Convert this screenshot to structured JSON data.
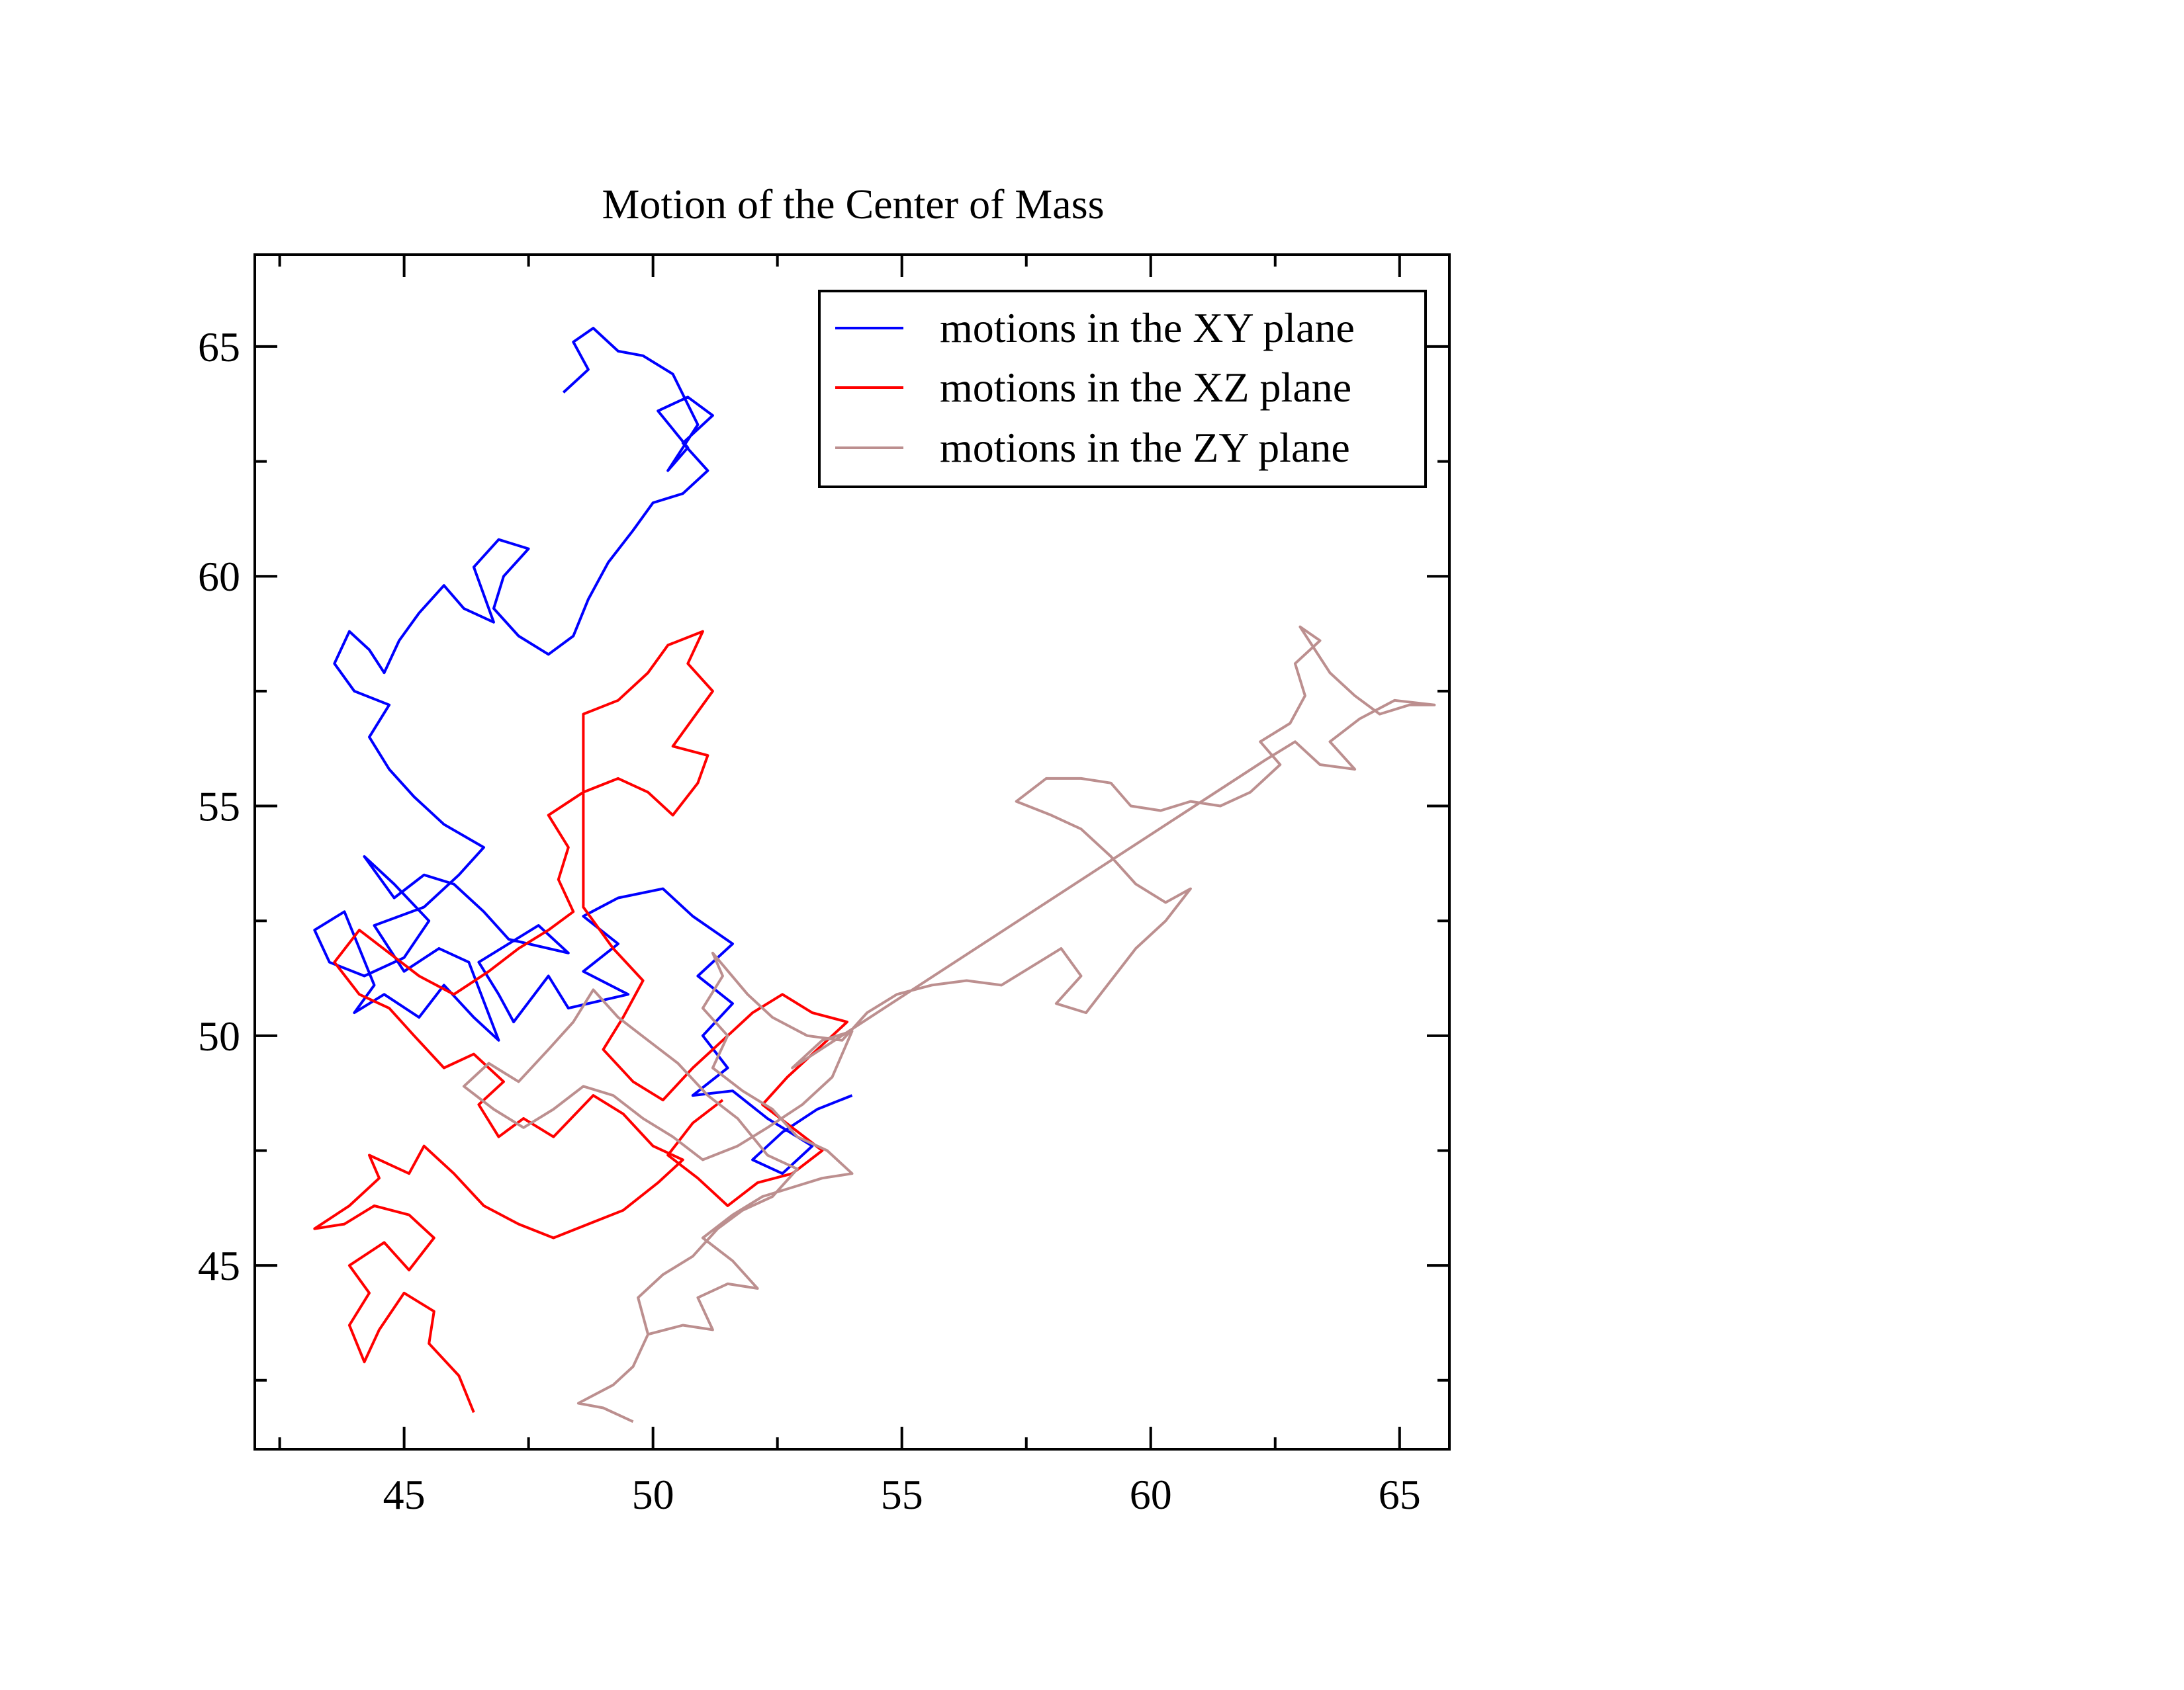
{
  "chart_data": {
    "type": "line",
    "title": "Motion of the Center of Mass",
    "xlabel": "",
    "ylabel": "",
    "xlim": [
      42,
      66
    ],
    "ylim": [
      41,
      67
    ],
    "x_ticks": [
      45,
      50,
      55,
      60,
      65
    ],
    "y_ticks": [
      45,
      50,
      55,
      60,
      65
    ],
    "x_minor_ticks": [
      42.5,
      47.5,
      52.5,
      57.5,
      62.5
    ],
    "y_minor_ticks": [
      42.5,
      47.5,
      52.5,
      57.5,
      62.5
    ],
    "grid": false,
    "legend_position": "top-right",
    "series": [
      {
        "name": "motions in the XY plane",
        "color": "#0000ff",
        "points": [
          [
            54.0,
            48.7
          ],
          [
            53.3,
            48.4
          ],
          [
            52.6,
            47.9
          ],
          [
            52.0,
            47.3
          ],
          [
            52.6,
            47.0
          ],
          [
            53.2,
            47.6
          ],
          [
            52.3,
            48.2
          ],
          [
            51.6,
            48.8
          ],
          [
            50.8,
            48.7
          ],
          [
            51.5,
            49.3
          ],
          [
            51.0,
            50.0
          ],
          [
            51.6,
            50.7
          ],
          [
            50.9,
            51.3
          ],
          [
            51.6,
            52.0
          ],
          [
            50.8,
            52.6
          ],
          [
            50.2,
            53.2
          ],
          [
            49.3,
            53.0
          ],
          [
            48.6,
            52.6
          ],
          [
            49.3,
            52.0
          ],
          [
            48.6,
            51.4
          ],
          [
            49.5,
            50.9
          ],
          [
            48.3,
            50.6
          ],
          [
            47.9,
            51.3
          ],
          [
            47.2,
            50.3
          ],
          [
            46.9,
            50.9
          ],
          [
            46.5,
            51.6
          ],
          [
            47.7,
            52.4
          ],
          [
            48.3,
            51.8
          ],
          [
            47.1,
            52.1
          ],
          [
            46.6,
            52.7
          ],
          [
            46.0,
            53.3
          ],
          [
            45.4,
            53.5
          ],
          [
            44.8,
            53.0
          ],
          [
            44.2,
            53.9
          ],
          [
            44.8,
            53.3
          ],
          [
            45.5,
            52.5
          ],
          [
            45.0,
            51.7
          ],
          [
            44.2,
            51.3
          ],
          [
            43.5,
            51.6
          ],
          [
            43.2,
            52.3
          ],
          [
            43.8,
            52.7
          ],
          [
            44.4,
            51.1
          ],
          [
            44.0,
            50.5
          ],
          [
            44.6,
            50.9
          ],
          [
            45.3,
            50.4
          ],
          [
            45.8,
            51.1
          ],
          [
            46.4,
            50.4
          ],
          [
            46.9,
            49.9
          ],
          [
            46.3,
            51.6
          ],
          [
            45.7,
            51.9
          ],
          [
            45.0,
            51.4
          ],
          [
            44.4,
            52.4
          ],
          [
            45.4,
            52.8
          ],
          [
            46.1,
            53.5
          ],
          [
            46.6,
            54.1
          ],
          [
            45.8,
            54.6
          ],
          [
            45.2,
            55.2
          ],
          [
            44.7,
            55.8
          ],
          [
            44.3,
            56.5
          ],
          [
            44.7,
            57.2
          ],
          [
            44.0,
            57.5
          ],
          [
            43.6,
            58.1
          ],
          [
            43.9,
            58.8
          ],
          [
            44.3,
            58.4
          ],
          [
            44.6,
            57.9
          ],
          [
            44.9,
            58.6
          ],
          [
            45.3,
            59.2
          ],
          [
            45.8,
            59.8
          ],
          [
            46.2,
            59.3
          ],
          [
            46.8,
            59.0
          ],
          [
            46.4,
            60.2
          ],
          [
            46.9,
            60.8
          ],
          [
            47.5,
            60.6
          ],
          [
            47.0,
            60.0
          ],
          [
            46.8,
            59.3
          ],
          [
            47.3,
            58.7
          ],
          [
            47.9,
            58.3
          ],
          [
            48.4,
            58.7
          ],
          [
            48.7,
            59.5
          ],
          [
            49.1,
            60.3
          ],
          [
            49.6,
            61.0
          ],
          [
            50.0,
            61.6
          ],
          [
            50.6,
            61.8
          ],
          [
            51.1,
            62.3
          ],
          [
            50.6,
            62.9
          ],
          [
            51.2,
            63.5
          ],
          [
            50.7,
            63.9
          ],
          [
            50.1,
            63.6
          ],
          [
            50.7,
            62.8
          ],
          [
            50.3,
            62.3
          ],
          [
            50.9,
            63.3
          ],
          [
            50.4,
            64.4
          ],
          [
            49.8,
            64.8
          ],
          [
            49.3,
            64.9
          ],
          [
            48.8,
            65.4
          ],
          [
            48.4,
            65.1
          ],
          [
            48.7,
            64.5
          ],
          [
            48.2,
            64.0
          ]
        ]
      },
      {
        "name": "motions in the XZ plane",
        "color": "#ff0000",
        "points": [
          [
            46.4,
            41.8
          ],
          [
            46.1,
            42.6
          ],
          [
            45.5,
            43.3
          ],
          [
            45.6,
            44.0
          ],
          [
            45.0,
            44.4
          ],
          [
            44.5,
            43.6
          ],
          [
            44.2,
            42.9
          ],
          [
            43.9,
            43.7
          ],
          [
            44.3,
            44.4
          ],
          [
            43.9,
            45.0
          ],
          [
            44.6,
            45.5
          ],
          [
            45.1,
            44.9
          ],
          [
            45.6,
            45.6
          ],
          [
            45.1,
            46.1
          ],
          [
            44.4,
            46.3
          ],
          [
            43.8,
            45.9
          ],
          [
            43.2,
            45.8
          ],
          [
            43.9,
            46.3
          ],
          [
            44.5,
            46.9
          ],
          [
            44.3,
            47.4
          ],
          [
            45.1,
            47.0
          ],
          [
            45.4,
            47.6
          ],
          [
            46.0,
            47.0
          ],
          [
            46.6,
            46.3
          ],
          [
            47.3,
            45.9
          ],
          [
            48.0,
            45.6
          ],
          [
            48.7,
            45.9
          ],
          [
            49.4,
            46.2
          ],
          [
            50.1,
            46.8
          ],
          [
            50.6,
            47.3
          ],
          [
            50.0,
            47.6
          ],
          [
            49.4,
            48.3
          ],
          [
            48.8,
            48.7
          ],
          [
            48.0,
            47.8
          ],
          [
            47.4,
            48.2
          ],
          [
            46.9,
            47.8
          ],
          [
            46.5,
            48.5
          ],
          [
            47.0,
            49.0
          ],
          [
            46.4,
            49.6
          ],
          [
            45.8,
            49.3
          ],
          [
            45.2,
            50.0
          ],
          [
            44.7,
            50.6
          ],
          [
            44.1,
            50.9
          ],
          [
            43.6,
            51.6
          ],
          [
            44.1,
            52.3
          ],
          [
            44.7,
            51.8
          ],
          [
            45.3,
            51.3
          ],
          [
            46.0,
            50.9
          ],
          [
            46.7,
            51.4
          ],
          [
            47.3,
            51.9
          ],
          [
            47.9,
            52.3
          ],
          [
            48.4,
            52.7
          ],
          [
            48.1,
            53.4
          ],
          [
            48.3,
            54.1
          ],
          [
            47.9,
            54.8
          ],
          [
            48.6,
            55.3
          ],
          [
            49.3,
            55.6
          ],
          [
            49.9,
            55.3
          ],
          [
            50.4,
            54.8
          ],
          [
            50.9,
            55.5
          ],
          [
            51.1,
            56.1
          ],
          [
            50.4,
            56.3
          ],
          [
            50.8,
            56.9
          ],
          [
            51.2,
            57.5
          ],
          [
            50.7,
            58.1
          ],
          [
            51.0,
            58.8
          ],
          [
            50.3,
            58.5
          ],
          [
            49.9,
            57.9
          ],
          [
            49.3,
            57.3
          ],
          [
            48.6,
            57.0
          ],
          [
            48.6,
            52.8
          ],
          [
            49.2,
            51.9
          ],
          [
            49.8,
            51.2
          ],
          [
            49.4,
            50.4
          ],
          [
            49.0,
            49.7
          ],
          [
            49.6,
            49.0
          ],
          [
            50.2,
            48.6
          ],
          [
            50.8,
            49.3
          ],
          [
            51.4,
            49.9
          ],
          [
            52.0,
            50.5
          ],
          [
            52.6,
            50.9
          ],
          [
            53.2,
            50.5
          ],
          [
            53.9,
            50.3
          ],
          [
            53.3,
            49.7
          ],
          [
            52.7,
            49.1
          ],
          [
            52.2,
            48.5
          ],
          [
            52.8,
            48.0
          ],
          [
            53.4,
            47.5
          ],
          [
            52.8,
            47.0
          ],
          [
            52.1,
            46.8
          ],
          [
            51.5,
            46.3
          ],
          [
            50.9,
            46.9
          ],
          [
            50.3,
            47.4
          ],
          [
            50.8,
            48.1
          ],
          [
            51.4,
            48.6
          ]
        ]
      },
      {
        "name": "motions in the ZY plane",
        "color": "#bc8f8f",
        "points": [
          [
            49.6,
            41.6
          ],
          [
            49.0,
            41.9
          ],
          [
            48.5,
            42.0
          ],
          [
            49.2,
            42.4
          ],
          [
            49.6,
            42.8
          ],
          [
            49.9,
            43.5
          ],
          [
            50.6,
            43.7
          ],
          [
            51.2,
            43.6
          ],
          [
            50.9,
            44.3
          ],
          [
            51.5,
            44.6
          ],
          [
            52.1,
            44.5
          ],
          [
            51.6,
            45.1
          ],
          [
            51.0,
            45.6
          ],
          [
            51.6,
            46.1
          ],
          [
            52.2,
            46.5
          ],
          [
            52.8,
            46.7
          ],
          [
            53.4,
            46.9
          ],
          [
            54.0,
            47.0
          ],
          [
            53.5,
            47.5
          ],
          [
            52.9,
            47.8
          ],
          [
            52.4,
            48.4
          ],
          [
            51.8,
            48.8
          ],
          [
            51.2,
            49.3
          ],
          [
            51.5,
            50.0
          ],
          [
            51.0,
            50.6
          ],
          [
            51.4,
            51.3
          ],
          [
            51.2,
            51.8
          ],
          [
            51.9,
            50.9
          ],
          [
            52.4,
            50.4
          ],
          [
            53.1,
            50.0
          ],
          [
            53.8,
            49.9
          ],
          [
            54.3,
            50.5
          ],
          [
            54.9,
            50.9
          ],
          [
            55.6,
            51.1
          ],
          [
            56.3,
            51.2
          ],
          [
            57.0,
            51.1
          ],
          [
            57.6,
            51.5
          ],
          [
            58.2,
            51.9
          ],
          [
            58.6,
            51.3
          ],
          [
            58.1,
            50.7
          ],
          [
            58.7,
            50.5
          ],
          [
            59.2,
            51.2
          ],
          [
            59.7,
            51.9
          ],
          [
            60.3,
            52.5
          ],
          [
            60.8,
            53.2
          ],
          [
            60.3,
            52.9
          ],
          [
            59.7,
            53.3
          ],
          [
            59.2,
            53.9
          ],
          [
            58.6,
            54.5
          ],
          [
            58.0,
            54.8
          ],
          [
            57.3,
            55.1
          ],
          [
            57.9,
            55.6
          ],
          [
            58.6,
            55.6
          ],
          [
            59.2,
            55.5
          ],
          [
            59.6,
            55.0
          ],
          [
            60.2,
            54.9
          ],
          [
            60.8,
            55.1
          ],
          [
            61.4,
            55.0
          ],
          [
            62.0,
            55.3
          ],
          [
            62.6,
            55.9
          ],
          [
            62.2,
            56.4
          ],
          [
            62.8,
            56.8
          ],
          [
            63.1,
            57.4
          ],
          [
            62.9,
            58.1
          ],
          [
            63.4,
            58.6
          ],
          [
            63.0,
            58.9
          ],
          [
            63.6,
            57.9
          ],
          [
            64.1,
            57.4
          ],
          [
            64.6,
            57.0
          ],
          [
            65.2,
            57.2
          ],
          [
            65.7,
            57.2
          ],
          [
            64.9,
            57.3
          ],
          [
            64.2,
            56.9
          ],
          [
            63.6,
            56.4
          ],
          [
            64.1,
            55.8
          ],
          [
            63.4,
            55.9
          ],
          [
            62.9,
            56.4
          ],
          [
            62.3,
            56.0
          ],
          [
            52.8,
            49.3
          ],
          [
            53.4,
            49.9
          ],
          [
            54.0,
            50.1
          ],
          [
            53.6,
            49.1
          ],
          [
            53.0,
            48.5
          ],
          [
            52.3,
            48.0
          ],
          [
            51.7,
            47.6
          ],
          [
            51.0,
            47.3
          ],
          [
            50.4,
            47.8
          ],
          [
            49.8,
            48.2
          ],
          [
            49.2,
            48.7
          ],
          [
            48.6,
            48.9
          ],
          [
            48.0,
            48.4
          ],
          [
            47.4,
            48.0
          ],
          [
            46.8,
            48.4
          ],
          [
            46.2,
            48.9
          ],
          [
            46.7,
            49.4
          ],
          [
            47.3,
            49.0
          ],
          [
            47.9,
            49.7
          ],
          [
            48.4,
            50.3
          ],
          [
            48.8,
            51.0
          ],
          [
            49.3,
            50.4
          ],
          [
            49.9,
            49.9
          ],
          [
            50.5,
            49.4
          ],
          [
            51.1,
            48.7
          ],
          [
            51.7,
            48.2
          ],
          [
            52.3,
            47.4
          ],
          [
            52.9,
            47.1
          ],
          [
            52.4,
            46.5
          ],
          [
            51.8,
            46.2
          ],
          [
            51.3,
            45.8
          ],
          [
            50.8,
            45.2
          ],
          [
            50.2,
            44.8
          ],
          [
            49.7,
            44.3
          ],
          [
            49.9,
            43.5
          ]
        ]
      }
    ]
  }
}
